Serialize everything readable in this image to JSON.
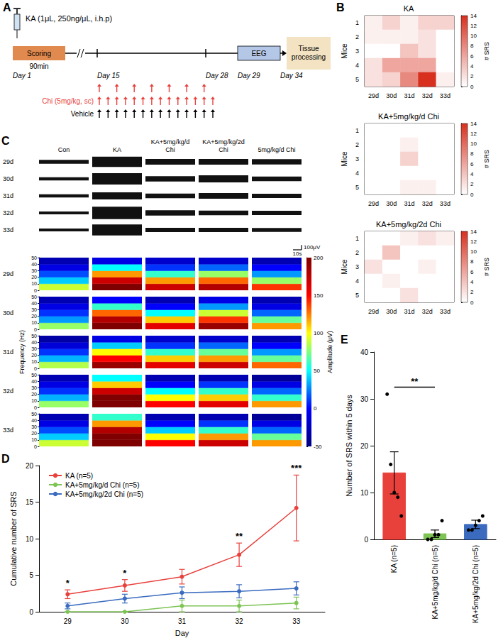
{
  "timeline": {
    "panel": "A",
    "injection": "KA (1μL, 250ng/μL, i.h.p)",
    "scoring": "Scoring",
    "scoring_duration": "90min",
    "days": [
      "Day 1",
      "Day 15",
      "Day 28",
      "Day 29",
      "Day 34"
    ],
    "recording": "EEG",
    "end": "Tissue processing",
    "injection_rows": [
      {
        "color": "#e8413c",
        "count": 7
      },
      {
        "label": "Chi (5mg/kg, sc)",
        "color": "#e8413c",
        "count": 14
      },
      {
        "label": "Vehicle",
        "color": "#000000",
        "count": 14
      }
    ]
  },
  "chart_data": [
    {
      "panel": "B",
      "type": "heatmap",
      "title": "KA",
      "x": [
        "29d",
        "30d",
        "31d",
        "32d",
        "33d"
      ],
      "y": [
        "1",
        "2",
        "3",
        "4",
        "5"
      ],
      "y_label": "Mice",
      "color": "#d7301f",
      "cells": [
        [
          1,
          3,
          1,
          3,
          3
        ],
        [
          1,
          1,
          1,
          2,
          0
        ],
        [
          0,
          0,
          4,
          2,
          0
        ],
        [
          2,
          6,
          6,
          6,
          0
        ],
        [
          2,
          3,
          8,
          14,
          1
        ]
      ],
      "colorbar": {
        "range": [
          0,
          14
        ],
        "ticks": [
          0,
          2,
          4,
          6,
          8,
          10,
          12,
          14
        ],
        "label": "# SRS"
      }
    },
    {
      "type": "heatmap",
      "title": "KA+5mg/kg/d Chi",
      "x": [
        "29d",
        "30d",
        "31d",
        "32d",
        "33d"
      ],
      "y": [
        "1",
        "2",
        "3",
        "4",
        "5"
      ],
      "y_label": "Mice",
      "color": "#d7301f",
      "cells": [
        [
          0,
          0,
          0,
          0,
          0
        ],
        [
          0,
          0,
          1,
          0,
          0
        ],
        [
          0,
          0,
          3,
          0,
          0
        ],
        [
          0,
          0,
          0,
          0,
          0
        ],
        [
          0,
          0,
          1,
          1,
          0
        ]
      ],
      "colorbar": {
        "range": [
          0,
          14
        ],
        "ticks": [
          0,
          2,
          4,
          6,
          8,
          10,
          12,
          14
        ],
        "label": "# SRS"
      }
    },
    {
      "type": "heatmap",
      "title": "KA+5mg/kg/2d Chi",
      "x": [
        "29d",
        "30d",
        "31d",
        "32d",
        "33d"
      ],
      "y": [
        "1",
        "2",
        "3",
        "4",
        "5"
      ],
      "y_label": "Mice",
      "color": "#d7301f",
      "cells": [
        [
          0,
          0,
          1,
          2,
          1
        ],
        [
          0,
          4,
          0,
          0,
          0
        ],
        [
          2,
          0,
          0,
          1,
          0
        ],
        [
          0,
          1,
          0,
          0,
          0
        ],
        [
          0,
          0,
          2,
          0,
          0
        ]
      ],
      "colorbar": {
        "range": [
          0,
          14
        ],
        "ticks": [
          0,
          2,
          4,
          6,
          8,
          10,
          12,
          14
        ],
        "label": "# SRS"
      }
    },
    {
      "panel": "C",
      "type": "eeg_trace",
      "columns": [
        "Con",
        "KA",
        "KA+5mg/kg/d Chi",
        "KA+5mg/kg/2d Chi",
        "5mg/kg/d Chi"
      ],
      "rows": [
        "29d",
        "30d",
        "31d",
        "32d",
        "33d"
      ],
      "ylim": [
        -150,
        150
      ],
      "amplitudes": [
        [
          40,
          35,
          35,
          30,
          30
        ],
        [
          110,
          120,
          75,
          130,
          115
        ],
        [
          60,
          55,
          50,
          55,
          45
        ],
        [
          60,
          75,
          60,
          50,
          45
        ],
        [
          55,
          50,
          45,
          45,
          40
        ]
      ],
      "scale_bar": {
        "value": 100,
        "label": "100μV",
        "time_label": "10s"
      }
    },
    {
      "type": "spectrogram",
      "rows": [
        "29d",
        "30d",
        "31d",
        "32d",
        "33d"
      ],
      "y_label": "Frequency (Hz)",
      "ylim": [
        0,
        50
      ],
      "yticks": [
        0,
        10,
        20,
        30,
        40,
        50
      ],
      "freq_bins": [
        0,
        10,
        20,
        30,
        40,
        50
      ],
      "cells": [
        [
          [
            90,
            40,
            15,
            -10,
            -30
          ],
          [
            80,
            30,
            10,
            -10,
            -30
          ],
          [
            85,
            35,
            10,
            -15,
            -35
          ],
          [
            80,
            35,
            10,
            -10,
            -30
          ],
          [
            90,
            40,
            15,
            -10,
            -30
          ]
        ],
        [
          [
            200,
            170,
            120,
            50,
            -10
          ],
          [
            200,
            180,
            130,
            60,
            0
          ],
          [
            190,
            150,
            100,
            40,
            -10
          ],
          [
            200,
            200,
            170,
            110,
            50
          ],
          [
            200,
            200,
            180,
            120,
            60
          ]
        ],
        [
          [
            170,
            120,
            60,
            10,
            -20
          ],
          [
            160,
            110,
            50,
            0,
            -30
          ],
          [
            160,
            110,
            60,
            10,
            -20
          ],
          [
            150,
            100,
            50,
            0,
            -30
          ],
          [
            150,
            100,
            40,
            0,
            -30
          ]
        ],
        [
          [
            180,
            130,
            80,
            20,
            -20
          ],
          [
            190,
            140,
            90,
            30,
            -10
          ],
          [
            170,
            120,
            70,
            20,
            -20
          ],
          [
            160,
            110,
            60,
            10,
            -30
          ],
          [
            170,
            120,
            60,
            10,
            -30
          ]
        ],
        [
          [
            140,
            80,
            30,
            0,
            -30
          ],
          [
            120,
            70,
            20,
            -10,
            -30
          ],
          [
            130,
            70,
            30,
            0,
            -30
          ],
          [
            120,
            60,
            20,
            -10,
            -40
          ],
          [
            120,
            70,
            20,
            -10,
            -40
          ]
        ]
      ],
      "colorbar": {
        "range": [
          -50,
          200
        ],
        "ticks": [
          -50,
          0,
          50,
          100,
          150,
          200
        ],
        "label": "Amplitude (μV)"
      }
    },
    {
      "panel": "D",
      "type": "line",
      "x_label": "Day",
      "y_label": "Cumulative number of SRS",
      "categories": [
        "29",
        "30",
        "31",
        "32",
        "33"
      ],
      "ylim": [
        0,
        20
      ],
      "yticks": [
        0,
        5,
        10,
        15,
        20
      ],
      "legend": "upper left",
      "marker": "circle",
      "line_style": "solid",
      "series": [
        {
          "name": "KA (n=5)",
          "color": "#e8413c",
          "values": [
            2.4,
            3.6,
            4.8,
            7.8,
            14.2
          ],
          "errors": [
            0.6,
            0.8,
            1.0,
            1.6,
            4.5
          ],
          "significance": [
            "*",
            "*",
            null,
            "**",
            "***"
          ]
        },
        {
          "name": "KA+5mg/kg/d Chi (n=5)",
          "color": "#7dc454",
          "values": [
            0,
            0,
            0.8,
            0.8,
            1.2
          ],
          "errors": [
            0,
            0,
            0.8,
            0.8,
            0.8
          ]
        },
        {
          "name": "KA+5mg/kg/2d Chi (n=5)",
          "color": "#3a6bbf",
          "values": [
            0.8,
            1.8,
            2.6,
            2.8,
            3.2
          ],
          "errors": [
            0.4,
            0.6,
            0.8,
            0.9,
            0.9
          ]
        }
      ]
    },
    {
      "panel": "E",
      "type": "bar",
      "y_label": "Number of SRS within 5 days",
      "categories": [
        "KA (n=5)",
        "KA+5mg/kg/d Chi (n=5)",
        "KA+5mg/kg/2d Chi (n=5)"
      ],
      "values": [
        14.2,
        1.2,
        3.2
      ],
      "errors": [
        4.5,
        0.8,
        0.9
      ],
      "colors": [
        "#e8413c",
        "#7dc454",
        "#3a6bbf"
      ],
      "points": [
        [
          31,
          16,
          10,
          9,
          5
        ],
        [
          0,
          0,
          1,
          1,
          4
        ],
        [
          2,
          2,
          3,
          4,
          5
        ]
      ],
      "ylim": [
        0,
        40
      ],
      "yticks": [
        0,
        10,
        20,
        30,
        40
      ],
      "comparisons": [
        {
          "groups": [
            "KA (n=5)",
            "KA+5mg/kg/d Chi (n=5)"
          ],
          "label": "**"
        }
      ]
    }
  ]
}
